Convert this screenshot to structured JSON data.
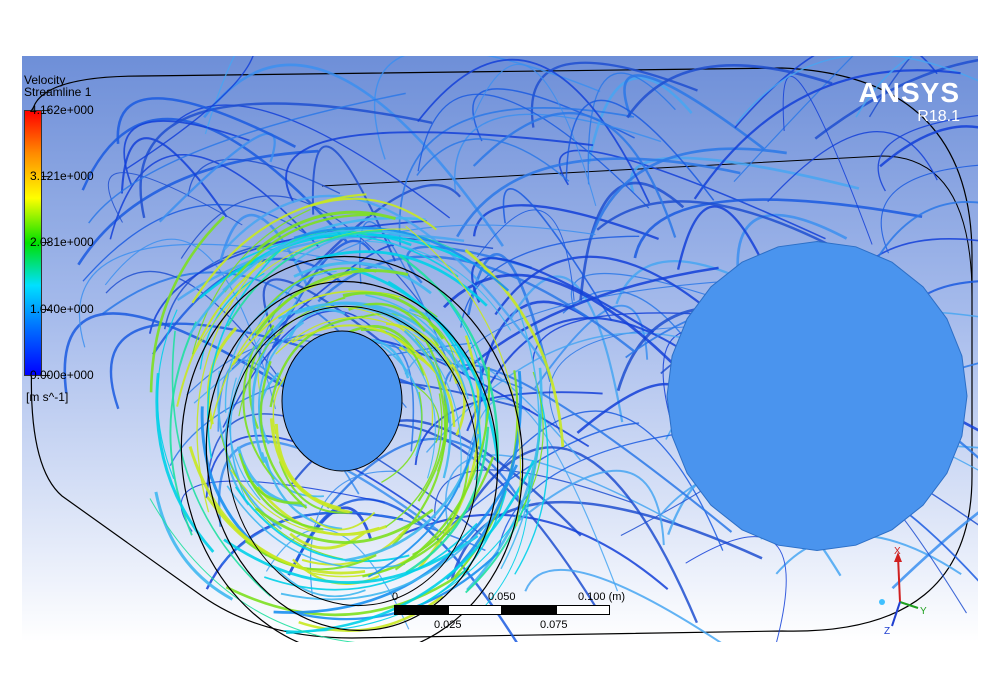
{
  "legend": {
    "title": "Velocity",
    "subtitle": "Streamline 1",
    "ticks": [
      "4.162e+000",
      "3.121e+000",
      "2.081e+000",
      "1.040e+000",
      "0.000e+000"
    ],
    "unit": "[m s^-1]",
    "colors": [
      "#ff0000",
      "#ffff00",
      "#00e000",
      "#00e0ff",
      "#0000ff"
    ]
  },
  "brand": {
    "name": "ANSYS",
    "version": "R18.1"
  },
  "scale": {
    "top_labels": [
      "0",
      "0.050",
      "0.100 (m)"
    ],
    "bottom_labels": [
      "0.025",
      "0.075"
    ]
  },
  "triad": {
    "x": "X",
    "y": "Y",
    "z": "Z"
  },
  "colors": {
    "background_top": "#6e8fd8",
    "background_bottom": "#ffffff",
    "surface": "#4a94ee",
    "streamline": "#1a5be0"
  }
}
